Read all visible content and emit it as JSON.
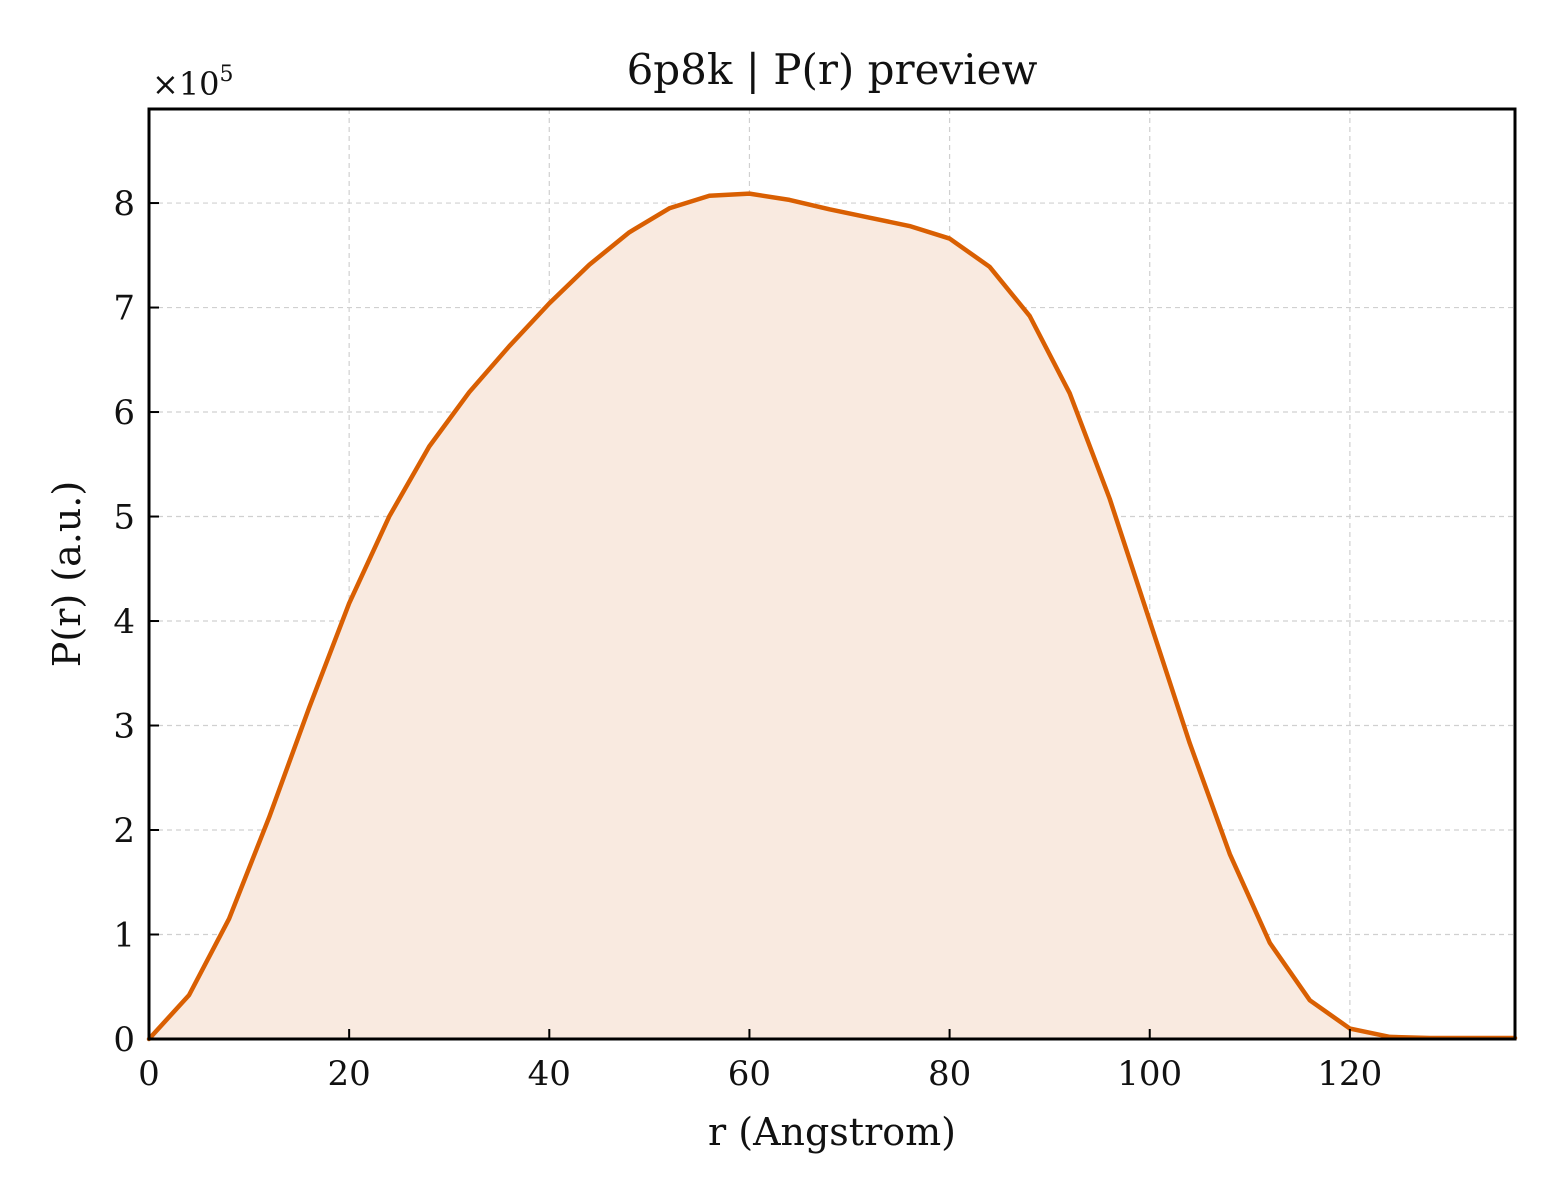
{
  "chart_data": {
    "type": "area",
    "title": "6p8k | P(r) preview",
    "xlabel": "r (Angstrom)",
    "ylabel": "P(r) (a.u.)",
    "y_multiplier_text": "×10",
    "y_multiplier_exponent": "5",
    "xlim": [
      0,
      136.5
    ],
    "ylim": [
      0,
      8.9
    ],
    "x_ticks": [
      0,
      20,
      40,
      60,
      80,
      100,
      120
    ],
    "y_ticks": [
      0,
      1,
      2,
      3,
      4,
      5,
      6,
      7,
      8
    ],
    "grid": true,
    "series": [
      {
        "x": [
          0,
          4,
          8,
          12,
          16,
          20,
          24,
          28,
          32,
          36,
          40,
          44,
          48,
          52,
          56,
          60,
          64,
          68,
          72,
          76,
          80,
          84,
          88,
          92,
          96,
          100,
          104,
          108,
          112,
          116,
          120,
          124,
          128,
          132,
          136.5
        ],
        "values": [
          0.0,
          0.42,
          1.15,
          2.12,
          3.17,
          4.17,
          5.0,
          5.67,
          6.19,
          6.63,
          7.04,
          7.41,
          7.72,
          7.95,
          8.07,
          8.09,
          8.03,
          7.94,
          7.86,
          7.78,
          7.66,
          7.39,
          6.92,
          6.18,
          5.17,
          4.0,
          2.83,
          1.77,
          0.92,
          0.37,
          0.1,
          0.02,
          0.01,
          0.01,
          0.01
        ]
      }
    ],
    "colors": {
      "line": "#d95f02",
      "fill": "#f9eae0",
      "grid": "#d0d0d0",
      "axis": "#000000"
    }
  }
}
